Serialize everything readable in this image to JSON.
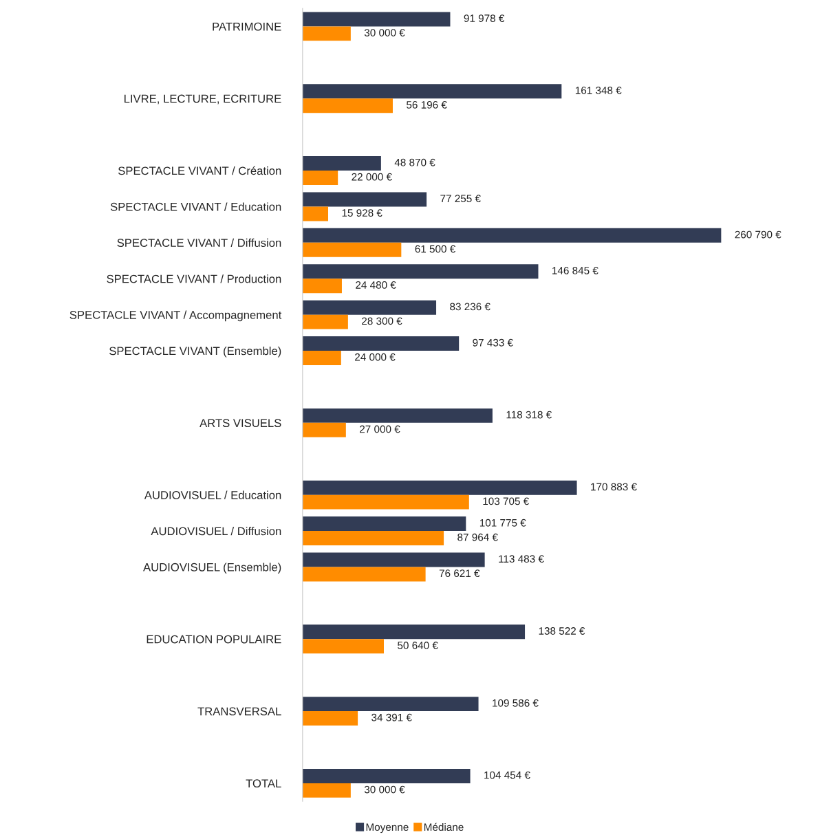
{
  "chart_data": {
    "type": "bar",
    "orientation": "horizontal",
    "categories": [
      "PATRIMOINE",
      null,
      "LIVRE, LECTURE, ECRITURE",
      null,
      "SPECTACLE VIVANT / Création",
      "SPECTACLE VIVANT / Education",
      "SPECTACLE VIVANT / Diffusion",
      "SPECTACLE VIVANT / Production",
      "SPECTACLE VIVANT / Accompagnement",
      "SPECTACLE VIVANT (Ensemble)",
      null,
      "ARTS VISUELS",
      null,
      "AUDIOVISUEL / Education",
      "AUDIOVISUEL / Diffusion",
      "AUDIOVISUEL (Ensemble)",
      null,
      "EDUCATION POPULAIRE",
      null,
      "TRANSVERSAL",
      null,
      "TOTAL"
    ],
    "series": [
      {
        "name": "Moyenne",
        "color": "#323c55",
        "values": [
          91978,
          null,
          161348,
          null,
          48870,
          77255,
          260790,
          146845,
          83236,
          97433,
          null,
          118318,
          null,
          170883,
          101775,
          113483,
          null,
          138522,
          null,
          109586,
          null,
          104454
        ],
        "value_labels": [
          "91 978 €",
          null,
          "161 348 €",
          null,
          "48 870 €",
          "77 255 €",
          "260 790 €",
          "146 845 €",
          "83 236 €",
          "97 433 €",
          null,
          "118 318 €",
          null,
          "170 883 €",
          "101 775 €",
          "113 483 €",
          null,
          "138 522 €",
          null,
          "109 586 €",
          null,
          "104 454 €"
        ]
      },
      {
        "name": "Médiane",
        "color": "#ff8c00",
        "values": [
          30000,
          null,
          56196,
          null,
          22000,
          15928,
          61500,
          24480,
          28300,
          24000,
          null,
          27000,
          null,
          103705,
          87964,
          76621,
          null,
          50640,
          null,
          34391,
          null,
          30000
        ],
        "value_labels": [
          "30 000 €",
          null,
          "56 196 €",
          null,
          "22 000 €",
          "15 928 €",
          "61 500 €",
          "24 480 €",
          "28 300 €",
          "24 000 €",
          null,
          "27 000 €",
          null,
          "103 705 €",
          "87 964 €",
          "76 621 €",
          null,
          "50 640 €",
          null,
          "34 391 €",
          null,
          "30 000 €"
        ]
      }
    ],
    "legend": "bottom",
    "grid": false
  }
}
